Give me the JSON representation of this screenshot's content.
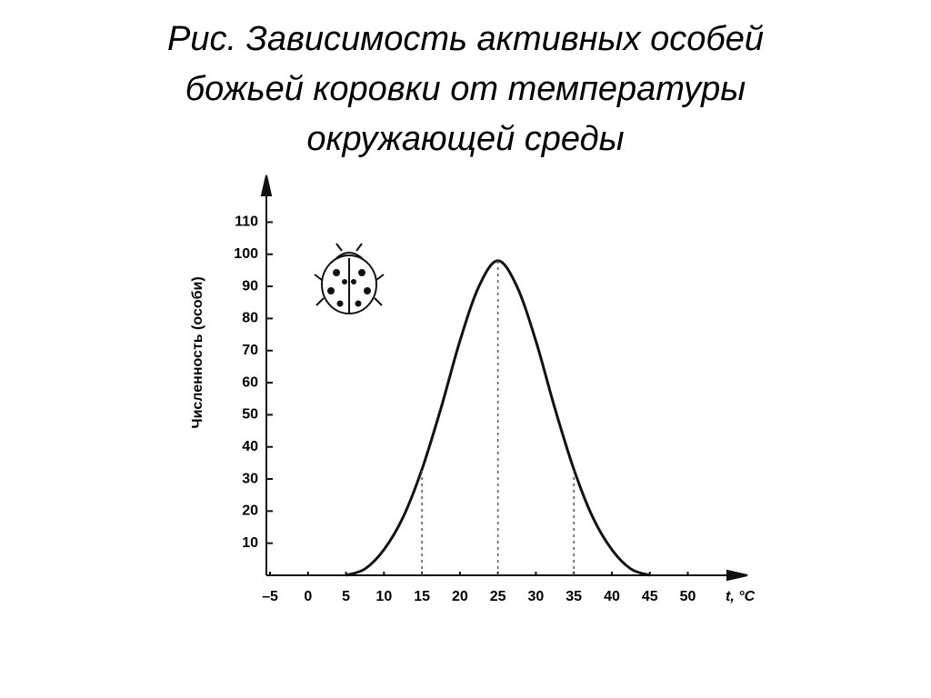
{
  "chart_data": {
    "type": "line",
    "title": [
      "Рис. Зависимость активных особей",
      "божьей коровки от температуры",
      "окружающей среды"
    ],
    "y_label": "Численность (особи)",
    "x_label": "t, °C",
    "x": [
      5,
      7.5,
      10,
      12.5,
      15,
      17.5,
      20,
      22.5,
      25,
      27.5,
      30,
      32.5,
      35,
      37.5,
      40,
      42.5,
      45
    ],
    "values": [
      0,
      2,
      8,
      18,
      33,
      52,
      73,
      90,
      98,
      90,
      73,
      52,
      33,
      18,
      8,
      2,
      0
    ],
    "color": "#111111",
    "droplines_x": [
      15,
      25,
      35
    ],
    "xlim": [
      -5,
      57
    ],
    "ylim": [
      0,
      124
    ],
    "xticks": [
      {
        "value": -5,
        "label": "–5"
      },
      0,
      5,
      10,
      15,
      20,
      25,
      30,
      35,
      40,
      45,
      50
    ],
    "yticks": [
      10,
      20,
      30,
      40,
      50,
      60,
      70,
      80,
      90,
      100,
      110
    ]
  }
}
